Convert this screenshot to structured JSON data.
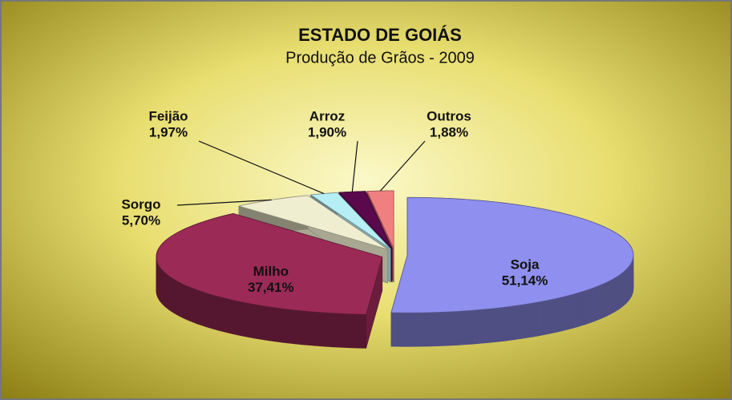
{
  "chart_data": {
    "type": "pie3d",
    "title": "ESTADO DE GOIÁS",
    "subtitle": "Produção de Grãos - 2009",
    "categories": [
      "Soja",
      "Milho",
      "Sorgo",
      "Feijão",
      "Arroz",
      "Outros"
    ],
    "values": [
      51.14,
      37.41,
      5.7,
      1.97,
      1.9,
      1.88
    ],
    "value_labels": [
      "51,14%",
      "37,41%",
      "5,70%",
      "1,97%",
      "1,90%",
      "1,88%"
    ],
    "colors": [
      "#8f8fef",
      "#9b2a56",
      "#f0eed0",
      "#b7eef5",
      "#5a0a4c",
      "#f08080"
    ]
  }
}
